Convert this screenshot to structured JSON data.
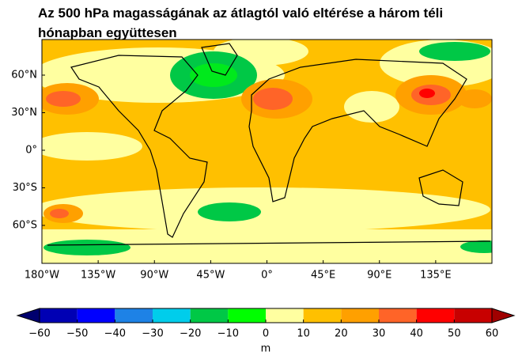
{
  "map": {
    "title": "Az 500 hPa magasságának az átlagtól való eltérése a három téli hónapban együttesen",
    "xticks": [
      {
        "value": -180,
        "label": "180°W"
      },
      {
        "value": -135,
        "label": "135°W"
      },
      {
        "value": -90,
        "label": "90°W"
      },
      {
        "value": -45,
        "label": "45°W"
      },
      {
        "value": 0,
        "label": "0°"
      },
      {
        "value": 45,
        "label": "45°E"
      },
      {
        "value": 90,
        "label": "90°E"
      },
      {
        "value": 135,
        "label": "135°E"
      }
    ],
    "yticks": [
      {
        "value": 60,
        "label": "60°N"
      },
      {
        "value": 30,
        "label": "30°N"
      },
      {
        "value": 0,
        "label": "0°"
      },
      {
        "value": -30,
        "label": "30°S"
      },
      {
        "value": -60,
        "label": "60°S"
      }
    ],
    "colorbar": {
      "ticks": [
        {
          "value": -60,
          "label": "−60"
        },
        {
          "value": -50,
          "label": "−50"
        },
        {
          "value": -40,
          "label": "−40"
        },
        {
          "value": -30,
          "label": "−30"
        },
        {
          "value": -20,
          "label": "−20"
        },
        {
          "value": -10,
          "label": "−10"
        },
        0,
        10,
        20,
        30,
        40,
        50,
        60
      ],
      "colors": [
        "#00006e",
        "#0000b4",
        "#0000ff",
        "#1e82e6",
        "#00cdeb",
        "#00c846",
        "#00ff00",
        "#ffffa0",
        "#ffc000",
        "#ffa000",
        "#ff6428",
        "#ff0000",
        "#c80000",
        "#a00000"
      ],
      "label": "m"
    }
  }
}
